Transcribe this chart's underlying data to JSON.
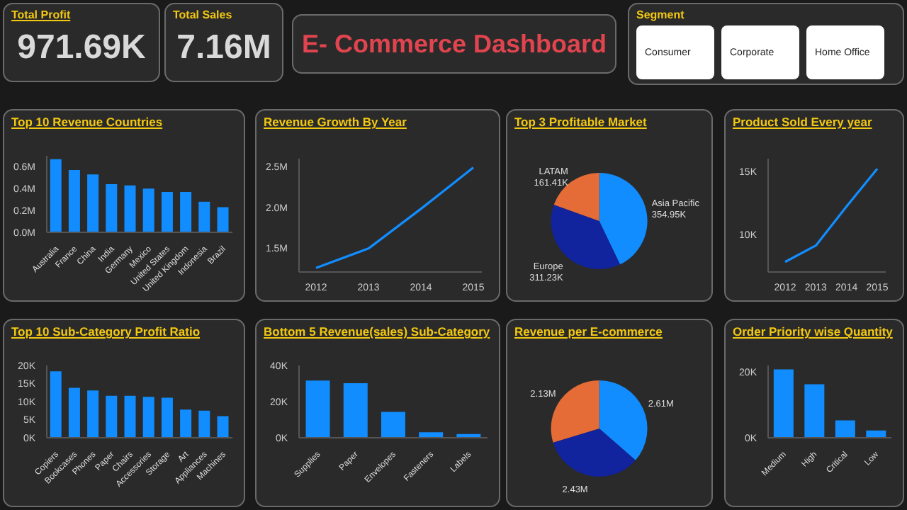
{
  "chart_data": [
    {
      "type": "other",
      "title": "Total Profit",
      "annotations": [
        "971.69K"
      ]
    },
    {
      "type": "other",
      "title": "Total Sales",
      "annotations": [
        "7.16M"
      ]
    },
    {
      "type": "other",
      "title": "E- Commerce Dashboard"
    },
    {
      "type": "other",
      "title": "Segment",
      "annotations": [
        "Consumer",
        "Corporate",
        "Home Office"
      ]
    },
    {
      "type": "bar",
      "title": "Top 10 Revenue Countries",
      "categories": [
        "Australia",
        "France",
        "China",
        "India",
        "Germany",
        "Mexico",
        "United States",
        "United Kingdom",
        "Indonesia",
        "Brazil"
      ],
      "values": [
        0.67,
        0.57,
        0.53,
        0.44,
        0.43,
        0.4,
        0.37,
        0.37,
        0.28,
        0.23
      ],
      "color": "#118dff",
      "ylim": [
        0,
        0.7
      ],
      "yticks": [
        {
          "value": 0,
          "label": "0.0M"
        },
        {
          "value": 0.2,
          "label": "0.2M"
        },
        {
          "value": 0.4,
          "label": "0.4M"
        },
        {
          "value": 0.6,
          "label": "0.6M"
        }
      ]
    },
    {
      "type": "line",
      "title": "Revenue Growth By Year",
      "categories": [
        "2012",
        "2013",
        "2014",
        "2015"
      ],
      "values": [
        1.25,
        1.49,
        1.98,
        2.49
      ],
      "color": "#118dff",
      "marker": "none",
      "ylim": [
        1.2,
        2.6
      ],
      "yticks": [
        {
          "value": 1.5,
          "label": "1.5M"
        },
        {
          "value": 2,
          "label": "2.0M"
        },
        {
          "value": 2.5,
          "label": "2.5M"
        }
      ]
    },
    {
      "type": "pie",
      "title": "Top 3 Profitable Market",
      "categories": [
        "Asia Pacific",
        "Europe",
        "LATAM"
      ],
      "values": [
        354.95,
        311.23,
        161.41
      ],
      "value_labels": [
        "354.95K",
        "311.23K",
        "161.41K"
      ],
      "colors": [
        "#118dff",
        "#12239e",
        "#e66c37"
      ]
    },
    {
      "type": "line",
      "title": "Product Sold Every year",
      "categories": [
        "2012",
        "2013",
        "2014",
        "2015"
      ],
      "values": [
        7.8,
        9.1,
        12.2,
        15.2
      ],
      "color": "#118dff",
      "marker": "none",
      "ylim": [
        7,
        16
      ],
      "yticks": [
        {
          "value": 10,
          "label": "10K"
        },
        {
          "value": 15,
          "label": "15K"
        }
      ]
    },
    {
      "type": "bar",
      "title": "Top 10 Sub-Category Profit Ratio",
      "categories": [
        "Copiers",
        "Bookcases",
        "Phones",
        "Paper",
        "Chairs",
        "Accessories",
        "Storage",
        "Art",
        "Appliances",
        "Machines"
      ],
      "values": [
        18.4,
        13.8,
        13.1,
        11.6,
        11.6,
        11.3,
        11.1,
        7.8,
        7.5,
        6.0
      ],
      "color": "#118dff",
      "ylim": [
        0,
        20
      ],
      "yticks": [
        {
          "value": 0,
          "label": "0K"
        },
        {
          "value": 5,
          "label": "5K"
        },
        {
          "value": 10,
          "label": "10K"
        },
        {
          "value": 15,
          "label": "15K"
        },
        {
          "value": 20,
          "label": "20K"
        }
      ]
    },
    {
      "type": "bar",
      "title": "Bottom 5 Revenue(sales) Sub-Category",
      "categories": [
        "Supplies",
        "Paper",
        "Envelopes",
        "Fasteners",
        "Labels"
      ],
      "values": [
        31.7,
        30.2,
        14.3,
        3.0,
        2.1
      ],
      "color": "#118dff",
      "ylim": [
        0,
        40
      ],
      "yticks": [
        {
          "value": 0,
          "label": "0K"
        },
        {
          "value": 20,
          "label": "20K"
        },
        {
          "value": 40,
          "label": "40K"
        }
      ]
    },
    {
      "type": "pie",
      "title": "Revenue per E-commerce",
      "categories": [
        null,
        null,
        null
      ],
      "values": [
        2.61,
        2.43,
        2.13
      ],
      "value_labels": [
        "2.61M",
        "2.43M",
        "2.13M"
      ],
      "colors": [
        "#118dff",
        "#12239e",
        "#e66c37"
      ]
    },
    {
      "type": "bar",
      "title": "Order Priority wise Quantity",
      "categories": [
        "Medium",
        "High",
        "Critical",
        "Low"
      ],
      "values": [
        20.8,
        16.3,
        5.3,
        2.2
      ],
      "color": "#118dff",
      "ylim": [
        0,
        22
      ],
      "yticks": [
        {
          "value": 0,
          "label": "0K"
        },
        {
          "value": 20,
          "label": "20K"
        }
      ]
    }
  ]
}
